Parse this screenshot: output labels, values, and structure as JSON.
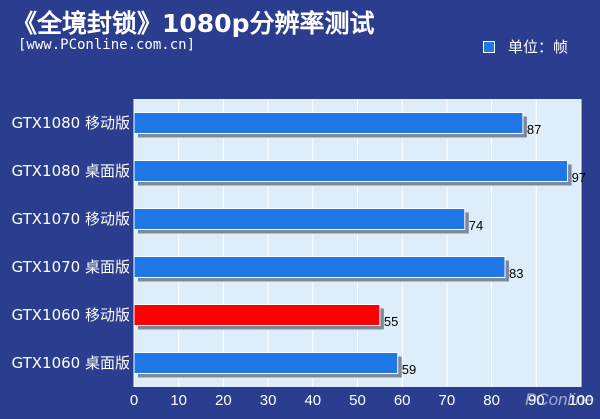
{
  "title": "《全境封锁》1080p分辨率测试",
  "source": "[www.PConline.com.cn]",
  "legend": {
    "label": "单位：帧",
    "color": "#1e78e6"
  },
  "watermark": "PConline",
  "colors": {
    "bar": "#1e78e6",
    "highlight": "#ff0000",
    "plot_bg": "#ddeefa",
    "grid": "#ffffff"
  },
  "chart_data": {
    "type": "bar",
    "orientation": "horizontal",
    "title": "《全境封锁》1080p分辨率测试",
    "unit": "单位：帧",
    "categories": [
      "GTX1080 移动版",
      "GTX1080 桌面版",
      "GTX1070 移动版",
      "GTX1070 桌面版",
      "GTX1060 移动版",
      "GTX1060 桌面版"
    ],
    "values": [
      87,
      97,
      74,
      83,
      55,
      59
    ],
    "highlight_index": 4,
    "xlim": [
      0,
      100
    ],
    "xticks": [
      0,
      10,
      20,
      30,
      40,
      50,
      60,
      70,
      80,
      90,
      100
    ],
    "grid": true
  }
}
